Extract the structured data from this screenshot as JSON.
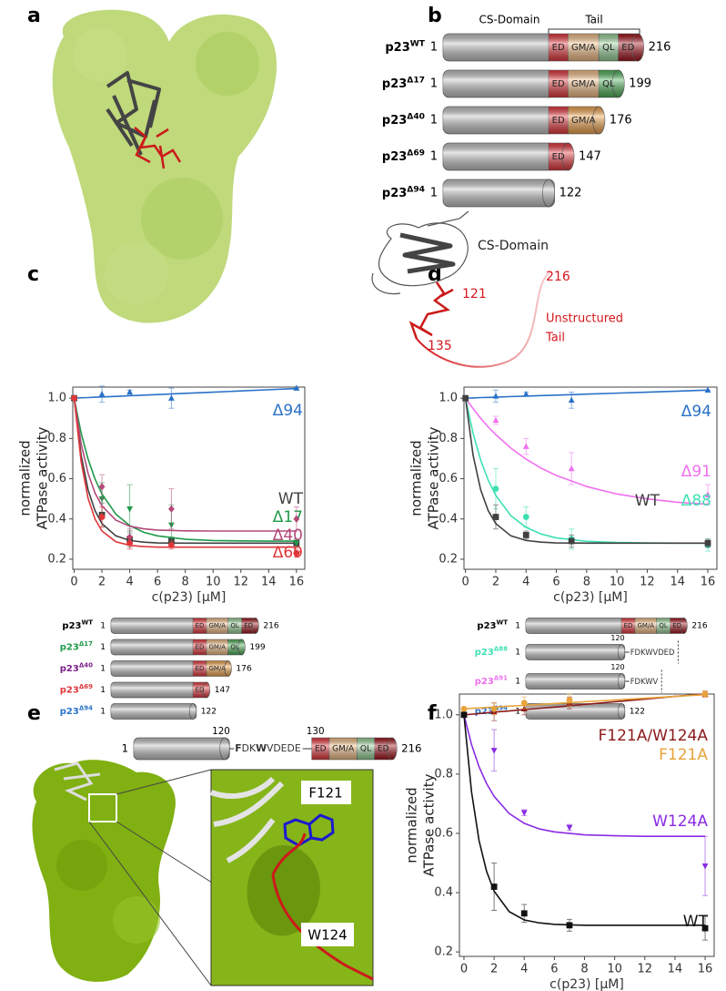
{
  "panel_labels": [
    "a",
    "b",
    "c",
    "d",
    "e",
    "f"
  ],
  "constructs_b": {
    "header": [
      "CS-Domain",
      "Tail"
    ],
    "rows": [
      {
        "name": "p23",
        "sup": "WT",
        "name_color": "#000000",
        "start": 1,
        "segments": [
          {
            "label": "ED",
            "color": "#e8393f"
          },
          {
            "label": "GM/A",
            "color": "#f5c088"
          },
          {
            "label": "QL",
            "color": "#9bd39a"
          },
          {
            "label": "ED",
            "color": "#a3141c"
          }
        ],
        "end": 216
      },
      {
        "name": "p23",
        "sup": "Δ17",
        "name_color": "#000000",
        "start": 1,
        "segments": [
          {
            "label": "ED",
            "color": "#e8393f"
          },
          {
            "label": "GM/A",
            "color": "#f5c088"
          },
          {
            "label": "QL",
            "color": "#4fb35a"
          }
        ],
        "end": 199
      },
      {
        "name": "p23",
        "sup": "Δ40",
        "name_color": "#000000",
        "start": 1,
        "segments": [
          {
            "label": "ED",
            "color": "#e8393f"
          },
          {
            "label": "GM/A",
            "color": "#f3a64d"
          }
        ],
        "end": 176
      },
      {
        "name": "p23",
        "sup": "Δ69",
        "name_color": "#000000",
        "start": 1,
        "segments": [
          {
            "label": "ED",
            "color": "#e8393f"
          }
        ],
        "end": 147
      },
      {
        "name": "p23",
        "sup": "Δ94",
        "name_color": "#000000",
        "start": 1,
        "segments": [],
        "end": 122
      }
    ]
  },
  "structure_b": {
    "domain_label": "CS-Domain",
    "residue_121": 121,
    "residue_216": 216,
    "residue_135": 135,
    "tail_label": [
      "Unstructured",
      "Tail"
    ]
  },
  "chart_data": [
    {
      "type": "line",
      "x": [
        0,
        2,
        4,
        7,
        16
      ],
      "fit_x": [
        0,
        0.5,
        1,
        1.5,
        2,
        3,
        4,
        5,
        6,
        8,
        10,
        12,
        14,
        16
      ],
      "xlim": [
        -0.1,
        16.6
      ],
      "ylim": [
        0.15,
        1.055
      ],
      "xticks": [
        0,
        2,
        4,
        6,
        8,
        10,
        12,
        14,
        16
      ],
      "yticks": [
        0.2,
        0.4,
        0.6,
        0.8,
        {
          "value": 1,
          "label": "1.0"
        }
      ],
      "xlabel": "c(p23) [µM]",
      "ylabel": [
        "normalized",
        "ATPase activity"
      ],
      "series": [
        {
          "name": "Δ94",
          "color": "#2a72c8",
          "marker": "triangle",
          "values": [
            1.0,
            1.02,
            1.03,
            1.0,
            1.05
          ],
          "errors": [
            0,
            0.04,
            0.01,
            0.05,
            0
          ],
          "fit": [
            1.0,
            1.002,
            1.003,
            1.005,
            1.006,
            1.009,
            1.012,
            1.015,
            1.018,
            1.024,
            1.03,
            1.036,
            1.042,
            1.048
          ]
        },
        {
          "name": "WT",
          "color": "#404040",
          "marker": "square",
          "values": [
            1.0,
            0.42,
            0.3,
            0.29,
            0.28
          ],
          "errors": [
            0,
            0.06,
            0.04,
            0.02,
            0.02
          ],
          "fit": [
            1.0,
            0.717,
            0.545,
            0.441,
            0.377,
            0.316,
            0.293,
            0.285,
            0.281,
            0.28,
            0.28,
            0.28,
            0.28,
            0.28
          ]
        },
        {
          "name": "Δ17",
          "color": "#1f9a4a",
          "marker": "triangle-down",
          "values": [
            1.0,
            0.5,
            0.45,
            0.37,
            0.28
          ],
          "errors": [
            0,
            0.08,
            0.12,
            0.1,
            0.02
          ],
          "fit": [
            1.0,
            0.827,
            0.698,
            0.599,
            0.524,
            0.424,
            0.367,
            0.334,
            0.316,
            0.299,
            0.293,
            0.291,
            0.29,
            0.29
          ]
        },
        {
          "name": "Δ40",
          "color": "#b4497a",
          "marker": "diamond",
          "values": [
            1.0,
            0.56,
            0.31,
            0.45,
            0.4
          ],
          "errors": [
            0,
            0.06,
            0.04,
            0.1,
            0.06
          ],
          "fit": [
            1.0,
            0.775,
            0.627,
            0.529,
            0.465,
            0.394,
            0.364,
            0.351,
            0.345,
            0.341,
            0.34,
            0.34,
            0.34,
            0.34
          ]
        },
        {
          "name": "Δ69",
          "color": "#e0363a",
          "marker": "circle",
          "values": [
            1.0,
            0.41,
            0.28,
            0.27,
            0.23
          ],
          "errors": [
            0,
            0.05,
            0.03,
            0.02,
            0.02
          ],
          "fit": [
            1.0,
            0.685,
            0.503,
            0.4,
            0.34,
            0.287,
            0.269,
            0.263,
            0.26,
            0.26,
            0.26,
            0.26,
            0.26,
            0.26
          ]
        }
      ]
    },
    {
      "type": "line",
      "x": [
        0,
        2,
        4,
        7,
        16
      ],
      "fit_x": [
        0,
        0.5,
        1,
        1.5,
        2,
        3,
        4,
        5,
        6,
        8,
        10,
        12,
        14,
        16
      ],
      "xlim": [
        -0.1,
        16.6
      ],
      "ylim": [
        0.15,
        1.055
      ],
      "xticks": [
        0,
        2,
        4,
        6,
        8,
        10,
        12,
        14,
        16
      ],
      "yticks": [
        0.2,
        0.4,
        0.6,
        0.8,
        {
          "value": 1,
          "label": "1.0"
        }
      ],
      "xlabel": "c(p23) [µM]",
      "ylabel": [
        "normalized",
        "ATPase activity"
      ],
      "series": [
        {
          "name": "Δ94",
          "color": "#2a72c8",
          "marker": "triangle",
          "values": [
            1.0,
            1.01,
            1.02,
            0.99,
            1.04
          ],
          "errors": [
            0,
            0.03,
            0.01,
            0.04,
            0
          ],
          "fit": [
            1.0,
            1.001,
            1.003,
            1.004,
            1.005,
            1.008,
            1.01,
            1.013,
            1.015,
            1.02,
            1.025,
            1.03,
            1.035,
            1.04
          ]
        },
        {
          "name": "Δ91",
          "color": "#f070f0",
          "marker": "triangle",
          "values": [
            1.0,
            0.89,
            0.76,
            0.65,
            0.52
          ],
          "errors": [
            0,
            0.02,
            0.04,
            0.08,
            0.05
          ],
          "fit": [
            1.0,
            0.948,
            0.9,
            0.857,
            0.819,
            0.752,
            0.697,
            0.652,
            0.616,
            0.561,
            0.524,
            0.5,
            0.483,
            0.473
          ]
        },
        {
          "name": "Δ88",
          "color": "#3fe0b4",
          "marker": "circle",
          "values": [
            1.0,
            0.55,
            0.41,
            0.3,
            0.27
          ],
          "errors": [
            0,
            0.1,
            0.05,
            0.05,
            0.03
          ],
          "fit": [
            1.0,
            0.825,
            0.693,
            0.593,
            0.517,
            0.416,
            0.358,
            0.325,
            0.306,
            0.289,
            0.283,
            0.281,
            0.28,
            0.28
          ]
        },
        {
          "name": "WT",
          "color": "#404040",
          "marker": "square",
          "values": [
            1.0,
            0.41,
            0.32,
            0.29,
            0.28
          ],
          "errors": [
            0,
            0.06,
            0.02,
            0.03,
            0.02
          ],
          "fit": [
            1.0,
            0.717,
            0.545,
            0.441,
            0.377,
            0.316,
            0.293,
            0.285,
            0.281,
            0.28,
            0.28,
            0.28,
            0.28,
            0.28
          ]
        }
      ]
    },
    {
      "type": "line",
      "x": [
        0,
        2,
        4,
        7,
        16
      ],
      "fit_x": [
        0,
        0.5,
        1,
        1.5,
        2,
        3,
        4,
        5,
        6,
        8,
        10,
        12,
        14,
        16
      ],
      "xlim": [
        -0.3,
        16.6
      ],
      "ylim": [
        0.185,
        1.07
      ],
      "xticks": [
        0,
        2,
        4,
        6,
        8,
        10,
        12,
        14,
        16
      ],
      "yticks": [
        0.2,
        0.4,
        0.6,
        0.8,
        {
          "value": 1,
          "label": "1.0"
        }
      ],
      "xlabel": "c(p23) [µM]",
      "ylabel": [
        "normalized",
        "ATPase activity"
      ],
      "series": [
        {
          "name": "F121A/W124A",
          "color": "#8b1a1a",
          "marker": "triangle",
          "values": [
            1.0,
            1.01,
            1.02,
            1.04,
            1.07
          ],
          "errors": [
            0,
            0.03,
            0.02,
            0.02,
            0.01
          ],
          "fit": [
            1.0,
            1.002,
            1.004,
            1.007,
            1.009,
            1.013,
            1.018,
            1.022,
            1.026,
            1.035,
            1.044,
            1.053,
            1.062,
            1.07
          ]
        },
        {
          "name": "F121A",
          "color": "#e8a33a",
          "marker": "circle",
          "values": [
            1.02,
            1.02,
            1.04,
            1.05,
            1.07
          ],
          "errors": [
            0,
            0.02,
            0.02,
            0.02,
            0.01
          ],
          "fit": [
            1.02,
            1.022,
            1.023,
            1.025,
            1.026,
            1.029,
            1.032,
            1.035,
            1.038,
            1.044,
            1.05,
            1.056,
            1.062,
            1.068
          ]
        },
        {
          "name": "W124A",
          "color": "#8a2be2",
          "marker": "triangle-down",
          "values": [
            1.0,
            0.88,
            0.67,
            0.62,
            0.49
          ],
          "errors": [
            0,
            0.07,
            0.01,
            0.01,
            0.1
          ],
          "fit": [
            1.0,
            0.9,
            0.825,
            0.768,
            0.725,
            0.667,
            0.634,
            0.615,
            0.605,
            0.595,
            0.592,
            0.59,
            0.59,
            0.59
          ]
        },
        {
          "name": "WT",
          "color": "#111111",
          "marker": "square",
          "values": [
            1.0,
            0.42,
            0.33,
            0.29,
            0.28
          ],
          "errors": [
            0,
            0.08,
            0.03,
            0.02,
            0.04
          ],
          "fit": [
            1.0,
            0.741,
            0.576,
            0.472,
            0.405,
            0.336,
            0.308,
            0.298,
            0.293,
            0.29,
            0.29,
            0.29,
            0.29,
            0.29
          ]
        }
      ]
    }
  ],
  "constructs_c": [
    {
      "name": "p23",
      "sup": "WT",
      "name_color": "#000000",
      "start": 1,
      "segments": [
        {
          "label": "ED",
          "color": "#e8393f"
        },
        {
          "label": "GM/A",
          "color": "#f5c088"
        },
        {
          "label": "QL",
          "color": "#9bd39a"
        },
        {
          "label": "ED",
          "color": "#a3141c"
        }
      ],
      "end": 216
    },
    {
      "name": "p23",
      "sup": "Δ17",
      "name_color": "#1f9a4a",
      "start": 1,
      "segments": [
        {
          "label": "ED",
          "color": "#e8393f"
        },
        {
          "label": "GM/A",
          "color": "#f5c088"
        },
        {
          "label": "QL",
          "color": "#4fb35a"
        }
      ],
      "end": 199
    },
    {
      "name": "p23",
      "sup": "Δ40",
      "name_color": "#7a1f8a",
      "start": 1,
      "segments": [
        {
          "label": "ED",
          "color": "#e8393f"
        },
        {
          "label": "GM/A",
          "color": "#f3a64d"
        }
      ],
      "end": 176
    },
    {
      "name": "p23",
      "sup": "Δ69",
      "name_color": "#e0363a",
      "start": 1,
      "segments": [
        {
          "label": "ED",
          "color": "#e8393f"
        }
      ],
      "end": 147
    },
    {
      "name": "p23",
      "sup": "Δ94",
      "name_color": "#2a72c8",
      "start": 1,
      "segments": [],
      "end": 122
    }
  ],
  "constructs_d": [
    {
      "name": "p23",
      "sup": "WT",
      "name_color": "#000000",
      "start": 1,
      "segments": [
        {
          "label": "ED",
          "color": "#e8393f"
        },
        {
          "label": "GM/A",
          "color": "#f5c088"
        },
        {
          "label": "QL",
          "color": "#9bd39a"
        },
        {
          "label": "ED",
          "color": "#a3141c"
        }
      ],
      "end": 216
    },
    {
      "name": "p23",
      "sup": "Δ88",
      "name_color": "#3fe0b4",
      "start": 1,
      "core_end": 120,
      "linker": [
        {
          "text": "FDKWVDED"
        }
      ],
      "segments": []
    },
    {
      "name": "p23",
      "sup": "Δ91",
      "name_color": "#f070f0",
      "start": 1,
      "core_end": 120,
      "linker": [
        {
          "text": "FDKWV"
        }
      ],
      "segments": []
    },
    {
      "name": "p23",
      "sup": "Δ94",
      "name_color": "#2a72c8",
      "start": 1,
      "segments": [],
      "end": 122
    }
  ],
  "construct_e": {
    "start": 1,
    "core_end": 120,
    "linker": [
      {
        "text": "F",
        "bold": true
      },
      {
        "text": "DK"
      },
      {
        "text": "W",
        "bold": true
      },
      {
        "text": "VDEDE"
      }
    ],
    "tail_start": 130,
    "segments": [
      {
        "label": "ED",
        "color": "#e8393f"
      },
      {
        "label": "GM/A",
        "color": "#f5c088"
      },
      {
        "label": "QL",
        "color": "#9bd39a"
      },
      {
        "label": "ED",
        "color": "#a3141c"
      }
    ],
    "end": 216
  },
  "zoom_e": {
    "labels": [
      "F121",
      "W124"
    ]
  }
}
